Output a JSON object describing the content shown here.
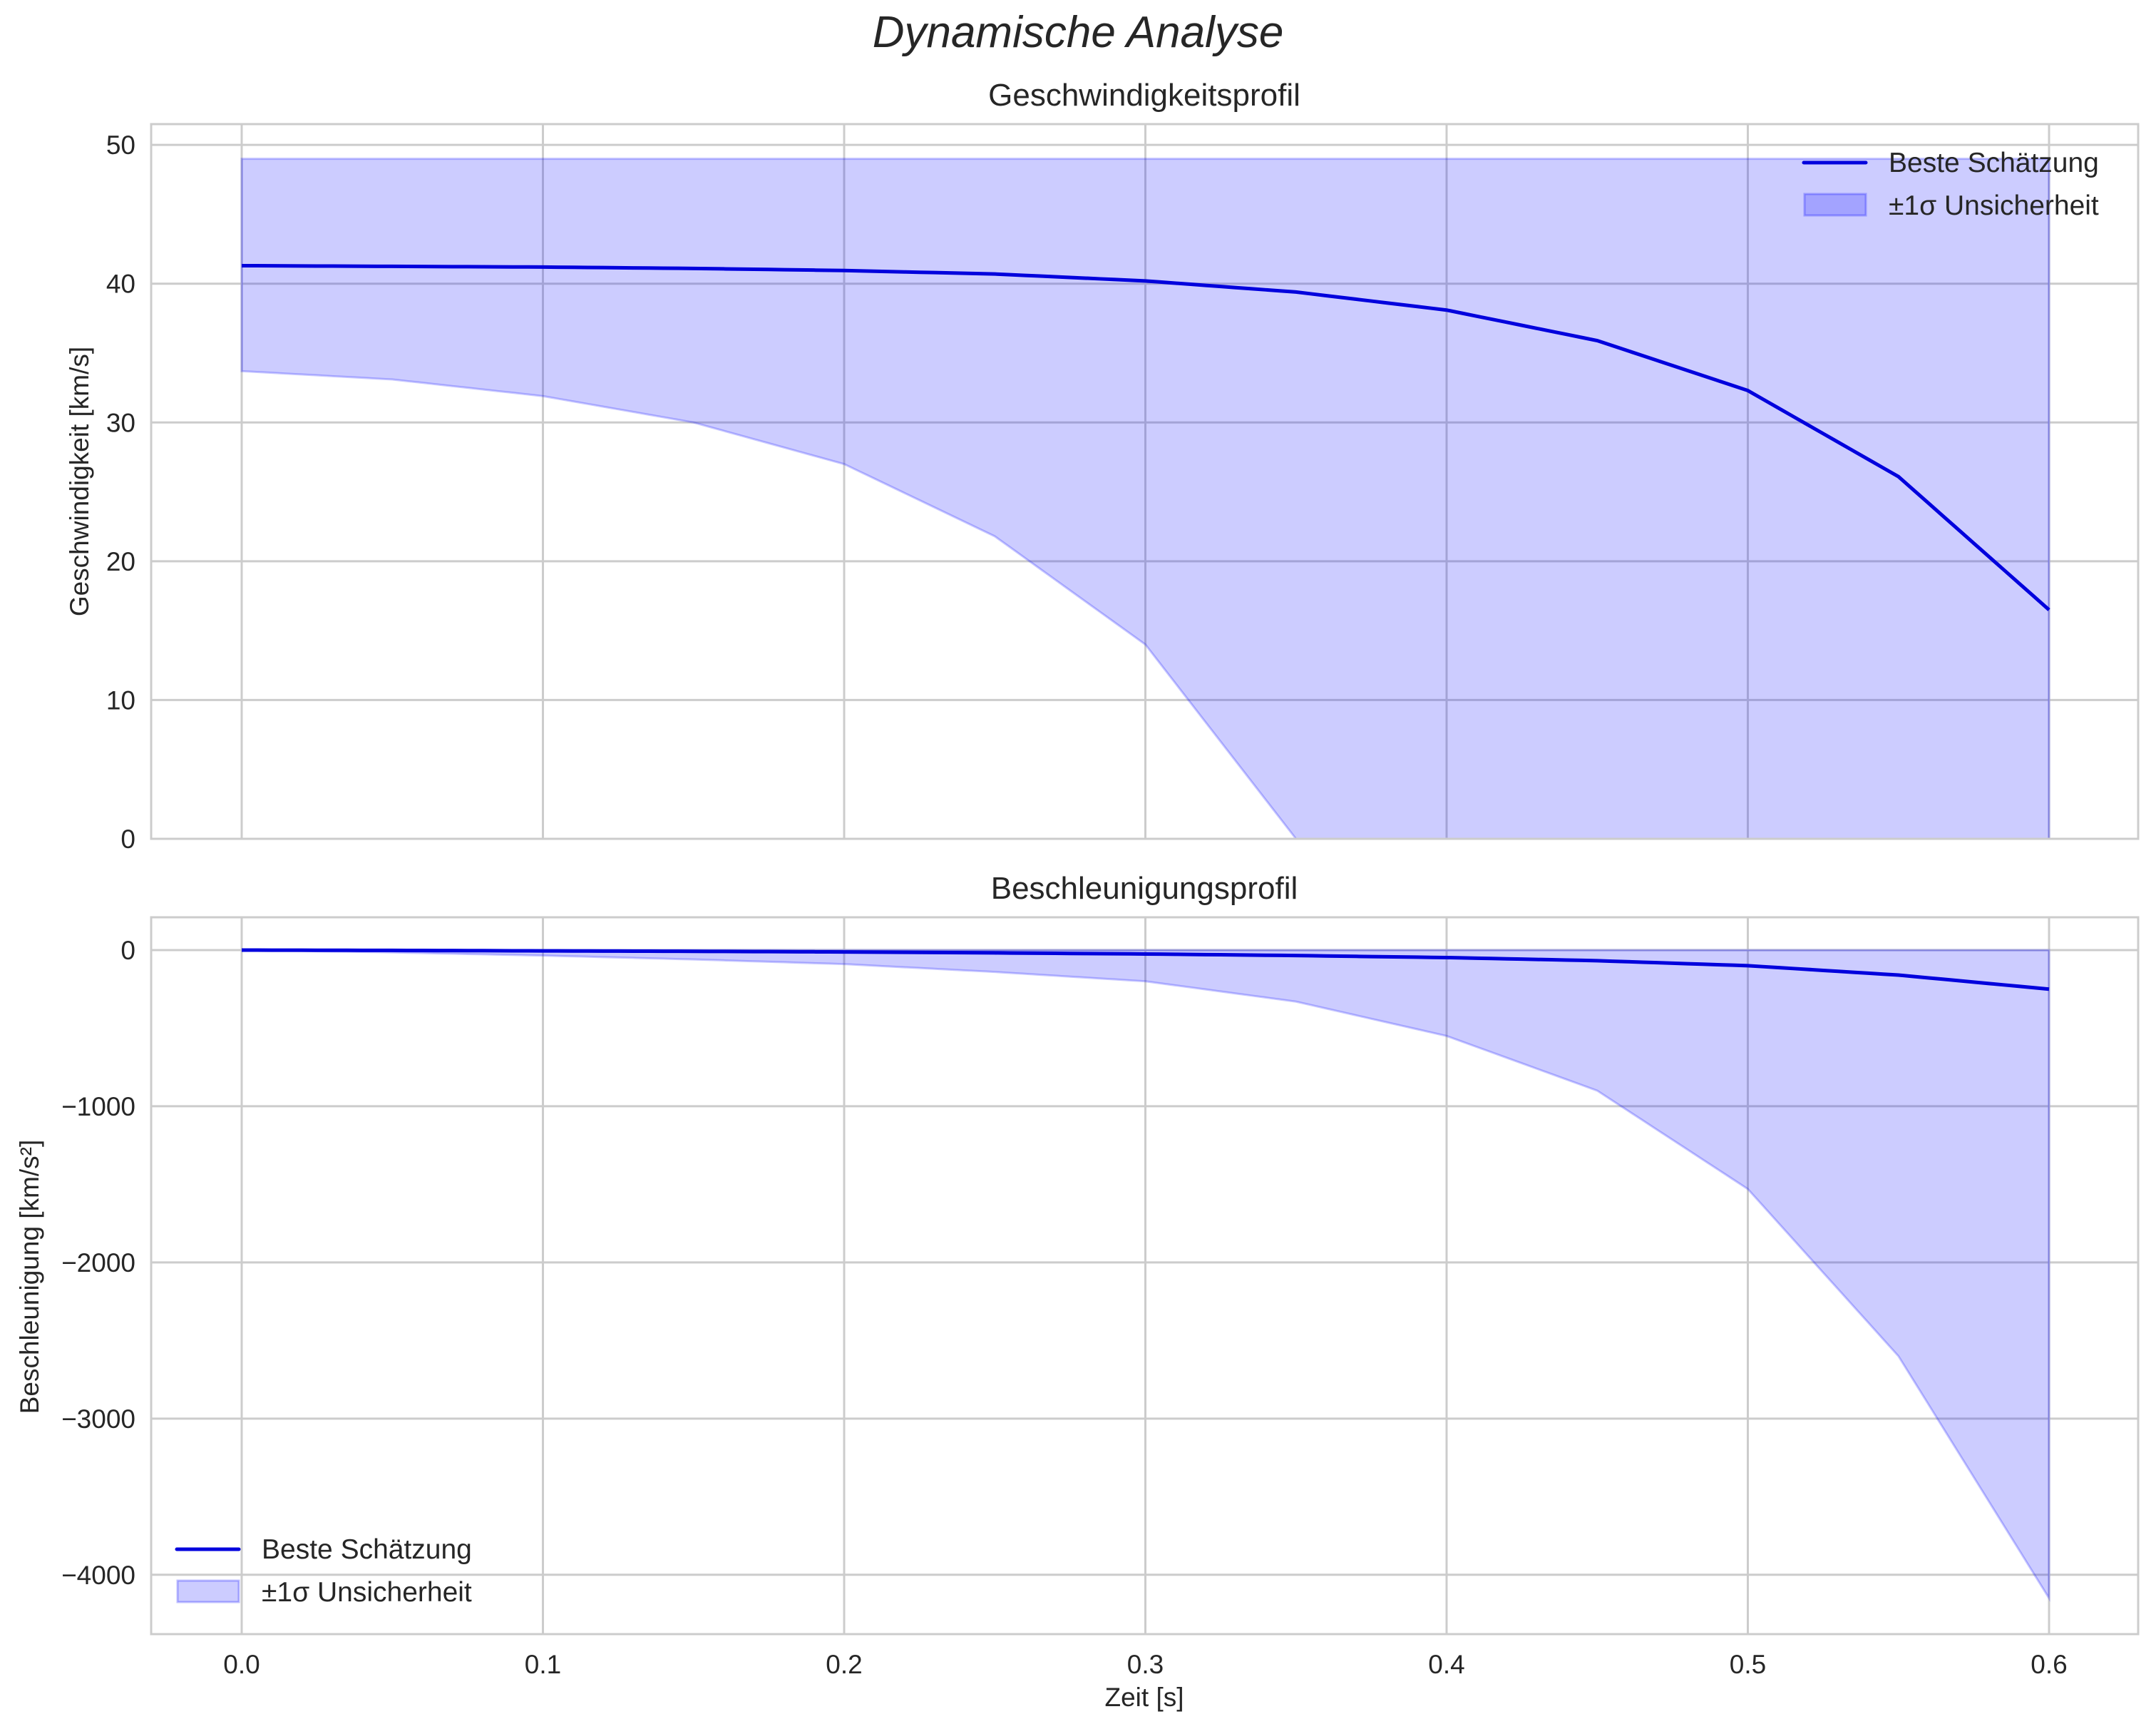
{
  "figure": {
    "title": "Dynamische Analyse"
  },
  "chart_data": [
    {
      "type": "line",
      "title": "Geschwindigkeitsprofil",
      "xlabel": "",
      "ylabel": "Geschwindigkeit [km/s]",
      "xlim": [
        -0.03,
        0.63
      ],
      "ylim": [
        0,
        51.5
      ],
      "xticks": [
        "0.0",
        "0.1",
        "0.2",
        "0.3",
        "0.4",
        "0.5",
        "0.6"
      ],
      "yticks": [
        "0",
        "10",
        "20",
        "30",
        "40",
        "50"
      ],
      "grid": true,
      "legend_position": "upper right",
      "x": [
        0.0,
        0.05,
        0.1,
        0.15,
        0.2,
        0.25,
        0.3,
        0.35,
        0.4,
        0.45,
        0.5,
        0.55,
        0.6
      ],
      "series": [
        {
          "name": "Beste Schätzung",
          "kind": "line",
          "color": "#0000dd",
          "values": [
            41.3,
            41.25,
            41.2,
            41.1,
            40.95,
            40.7,
            40.2,
            39.4,
            38.1,
            35.9,
            32.3,
            26.1,
            16.5
          ]
        },
        {
          "name": "±1σ Unsicherheit",
          "kind": "band",
          "color": "#0000ff",
          "alpha": 0.2,
          "upper": [
            49.0,
            49.0,
            49.0,
            49.0,
            49.0,
            49.0,
            49.0,
            49.0,
            49.0,
            49.0,
            49.0,
            49.0,
            49.0
          ],
          "lower": [
            33.7,
            33.1,
            31.9,
            30.0,
            27.0,
            21.8,
            14.0,
            0.0,
            0.0,
            0.0,
            0.0,
            0.0,
            0.0
          ]
        }
      ]
    },
    {
      "type": "line",
      "title": "Beschleunigungsprofil",
      "xlabel": "Zeit [s]",
      "ylabel": "Beschleunigung [km/s²]",
      "xlim": [
        -0.03,
        0.63
      ],
      "ylim": [
        -4380,
        210
      ],
      "xticks": [
        "0.0",
        "0.1",
        "0.2",
        "0.3",
        "0.4",
        "0.5",
        "0.6"
      ],
      "yticks": [
        "0",
        "−1000",
        "−2000",
        "−3000",
        "−4000"
      ],
      "grid": true,
      "legend_position": "lower left",
      "x": [
        0.0,
        0.05,
        0.1,
        0.15,
        0.2,
        0.25,
        0.3,
        0.35,
        0.4,
        0.45,
        0.5,
        0.55,
        0.6
      ],
      "series": [
        {
          "name": "Beste Schätzung",
          "kind": "line",
          "color": "#0000dd",
          "values": [
            0,
            -2,
            -5,
            -8,
            -12,
            -18,
            -25,
            -35,
            -48,
            -68,
            -100,
            -160,
            -250
          ]
        },
        {
          "name": "±1σ Unsicherheit",
          "kind": "band",
          "color": "#0000ff",
          "alpha": 0.2,
          "upper": [
            0,
            0,
            0,
            0,
            0,
            0,
            0,
            0,
            0,
            0,
            0,
            0,
            0
          ],
          "lower": [
            0,
            -15,
            -35,
            -60,
            -90,
            -140,
            -200,
            -330,
            -550,
            -900,
            -1530,
            -2600,
            -4150
          ]
        }
      ]
    }
  ]
}
